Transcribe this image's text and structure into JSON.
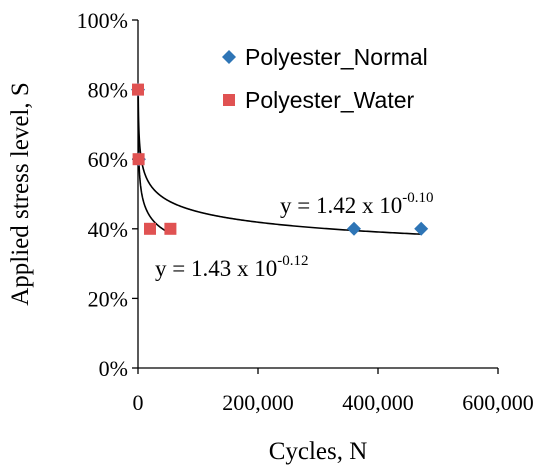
{
  "chart_data": {
    "type": "scatter",
    "xlabel": "Cycles, N",
    "ylabel": "Applied stress level, S",
    "xlim": [
      0,
      600000
    ],
    "ylim": [
      0,
      1.0
    ],
    "x_ticks": [
      0,
      200000,
      400000,
      600000
    ],
    "x_tick_labels": [
      "0",
      "200,000",
      "400,000",
      "600,000"
    ],
    "y_ticks": [
      0,
      0.2,
      0.4,
      0.6,
      0.8,
      1.0
    ],
    "y_tick_labels": [
      "0%",
      "20%",
      "40%",
      "60%",
      "80%",
      "100%"
    ],
    "grid": false,
    "legend_position": "top-right",
    "series": [
      {
        "name": "Polyester_Normal",
        "marker": "diamond",
        "color": "#2e75b6",
        "points": [
          {
            "x": 50,
            "y": 0.8
          },
          {
            "x": 1500,
            "y": 0.6
          },
          {
            "x": 360000,
            "y": 0.4
          },
          {
            "x": 472000,
            "y": 0.4
          }
        ]
      },
      {
        "name": "Polyester_Water",
        "marker": "square",
        "color": "#e05252",
        "points": [
          {
            "x": 0,
            "y": 0.8
          },
          {
            "x": 1000,
            "y": 0.6
          },
          {
            "x": 20000,
            "y": 0.4
          },
          {
            "x": 54000,
            "y": 0.4
          }
        ]
      }
    ],
    "fits": [
      {
        "coef": 1.42,
        "exp": -0.1,
        "label_base": "y = 1.42 x 10",
        "label_exp": "-0.10"
      },
      {
        "coef": 1.43,
        "exp": -0.12,
        "label_base": "y = 1.43 x 10",
        "label_exp": "-0.12"
      }
    ]
  }
}
